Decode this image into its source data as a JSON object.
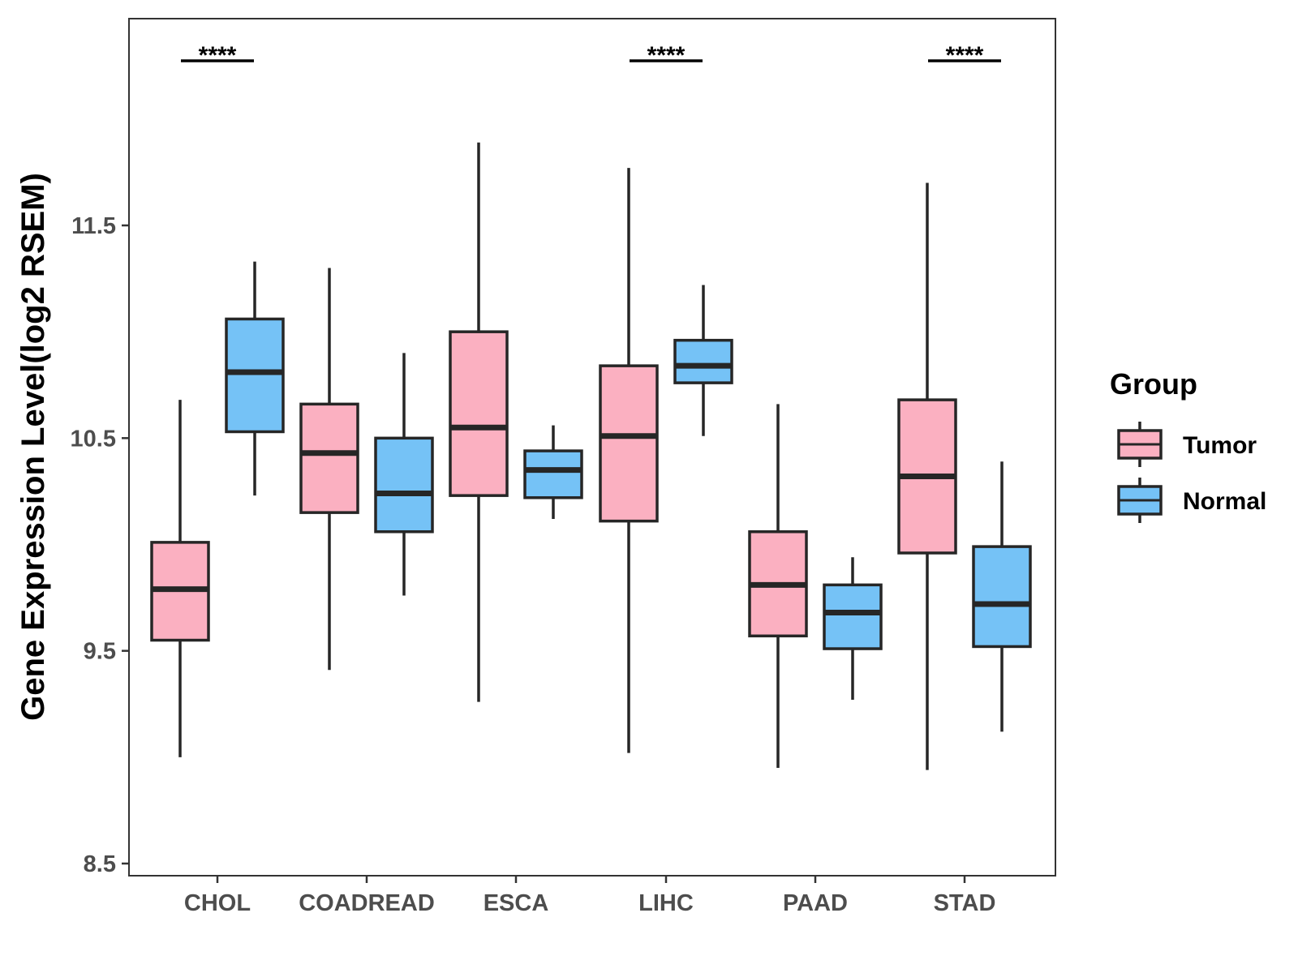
{
  "chart_data": {
    "type": "boxplot",
    "title": "",
    "xlabel": "",
    "ylabel": "Gene Expression Level(log2 RSEM)",
    "ylim": [
      8.45,
      12.48
    ],
    "yticks": [
      8.5,
      9.5,
      10.5,
      11.5
    ],
    "ytick_labels": [
      "8.5",
      "9.5",
      "10.5",
      "11.5"
    ],
    "categories": [
      "CHOL",
      "COADREAD",
      "ESCA",
      "LIHC",
      "PAAD",
      "STAD"
    ],
    "legend": {
      "title": "Group",
      "position": "right",
      "entries": [
        "Tumor",
        "Normal"
      ]
    },
    "series": [
      {
        "name": "Tumor",
        "color": "#FBB0C1",
        "boxes": [
          {
            "min": 9.0,
            "q1": 9.55,
            "median": 9.79,
            "q3": 10.01,
            "max": 10.68
          },
          {
            "min": 9.41,
            "q1": 10.15,
            "median": 10.43,
            "q3": 10.66,
            "max": 11.3
          },
          {
            "min": 9.26,
            "q1": 10.23,
            "median": 10.55,
            "q3": 11.0,
            "max": 11.89
          },
          {
            "min": 9.02,
            "q1": 10.11,
            "median": 10.51,
            "q3": 10.84,
            "max": 11.77
          },
          {
            "min": 8.95,
            "q1": 9.57,
            "median": 9.81,
            "q3": 10.06,
            "max": 10.66
          },
          {
            "min": 8.94,
            "q1": 9.96,
            "median": 10.32,
            "q3": 10.68,
            "max": 11.7
          }
        ]
      },
      {
        "name": "Normal",
        "color": "#75C2F6",
        "boxes": [
          {
            "min": 10.23,
            "q1": 10.53,
            "median": 10.81,
            "q3": 11.06,
            "max": 11.33
          },
          {
            "min": 9.76,
            "q1": 10.06,
            "median": 10.24,
            "q3": 10.5,
            "max": 10.9
          },
          {
            "min": 10.12,
            "q1": 10.22,
            "median": 10.35,
            "q3": 10.44,
            "max": 10.56
          },
          {
            "min": 10.51,
            "q1": 10.76,
            "median": 10.84,
            "q3": 10.96,
            "max": 11.22
          },
          {
            "min": 9.27,
            "q1": 9.51,
            "median": 9.68,
            "q3": 9.81,
            "max": 9.94
          },
          {
            "min": 9.12,
            "q1": 9.52,
            "median": 9.72,
            "q3": 9.99,
            "max": 10.39
          }
        ]
      }
    ],
    "significance": [
      {
        "category": "CHOL",
        "label": "****"
      },
      {
        "category": "LIHC",
        "label": "****"
      },
      {
        "category": "STAD",
        "label": "****"
      }
    ]
  }
}
